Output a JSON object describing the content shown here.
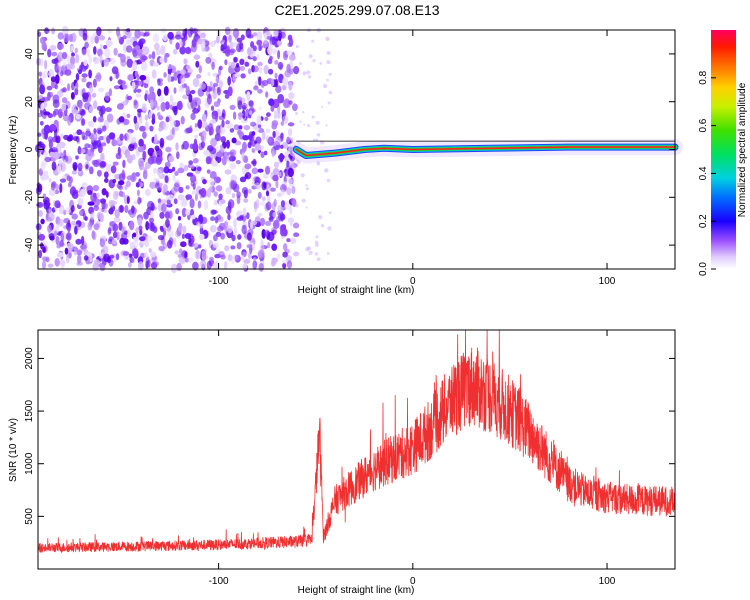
{
  "title": "C2E1.2025.299.07.08.E13",
  "chart_data": [
    {
      "type": "heatmap",
      "xlabel": "Height of straight line (km)",
      "ylabel": "Frequency (Hz)",
      "xlim": [
        -193,
        135
      ],
      "ylim": [
        -50,
        50
      ],
      "x_ticks": [
        -100,
        0,
        100
      ],
      "y_ticks": [
        -40,
        -20,
        0,
        20,
        40
      ],
      "noise_region_x": [
        -193,
        -60
      ],
      "signal_track": [
        {
          "x": -60,
          "y": 0.0
        },
        {
          "x": -55,
          "y": -2.5
        },
        {
          "x": -40,
          "y": -1.5
        },
        {
          "x": -25,
          "y": 0.0
        },
        {
          "x": -15,
          "y": 0.5
        },
        {
          "x": 0,
          "y": 0.0
        },
        {
          "x": 40,
          "y": 0.5
        },
        {
          "x": 80,
          "y": 1.0
        },
        {
          "x": 135,
          "y": 1.0
        }
      ],
      "colorbar": {
        "label": "Normalized spectral amplitude",
        "ticks": [
          "0.0",
          "0.2",
          "0.4",
          "0.6",
          "0.8"
        ],
        "range": [
          0,
          1
        ]
      }
    },
    {
      "type": "line",
      "xlabel": "Height of straight line (km)",
      "ylabel": "SNR (10 * v/v)",
      "xlim": [
        -193,
        135
      ],
      "ylim": [
        0,
        2270
      ],
      "x_ticks": [
        -100,
        0,
        100
      ],
      "y_ticks": [
        500,
        1000,
        1500,
        2000
      ],
      "color": "#f03030",
      "series": [
        {
          "x": [
            -193,
            -160,
            -130,
            -100,
            -80,
            -60,
            -52,
            -48,
            -46,
            -44,
            -40,
            -30,
            -20,
            -10,
            0,
            10,
            20,
            30,
            40,
            50,
            60,
            70,
            80,
            90,
            100,
            110,
            120,
            135
          ],
          "values": [
            200,
            210,
            220,
            230,
            245,
            260,
            280,
            1300,
            300,
            420,
            650,
            800,
            950,
            1050,
            1150,
            1350,
            1600,
            1750,
            1650,
            1500,
            1300,
            1050,
            820,
            720,
            680,
            660,
            650,
            640
          ]
        }
      ]
    }
  ]
}
